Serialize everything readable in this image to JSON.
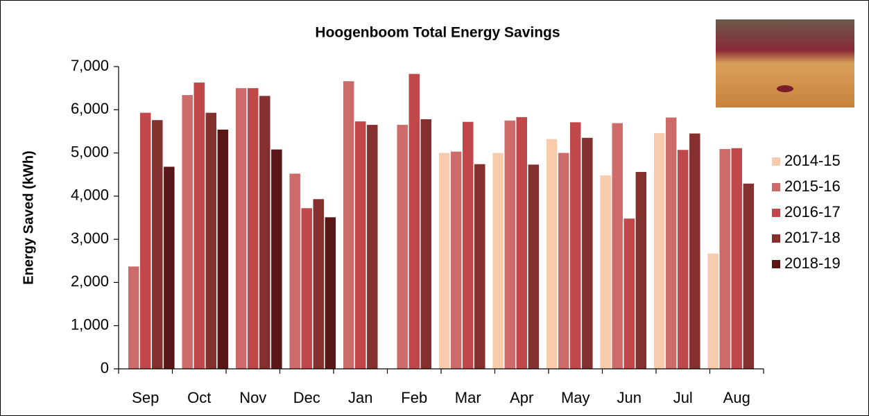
{
  "chart_data": {
    "type": "bar",
    "title": "Hoogenboom Total Energy Savings",
    "y_label": "Energy Saved (kWh)",
    "categories": [
      "Sep",
      "Oct",
      "Nov",
      "Dec",
      "Jan",
      "Feb",
      "Mar",
      "Apr",
      "May",
      "Jun",
      "Jul",
      "Aug"
    ],
    "series": [
      {
        "name": "2014-15",
        "color": "#f8cbad",
        "values": [
          null,
          null,
          null,
          null,
          null,
          null,
          5000,
          5000,
          5320,
          4480,
          5460,
          2670
        ]
      },
      {
        "name": "2015-16",
        "color": "#cd6b6b",
        "values": [
          2370,
          6340,
          6500,
          4520,
          6660,
          5650,
          5030,
          5750,
          5000,
          5690,
          5820,
          5090
        ]
      },
      {
        "name": "2016-17",
        "color": "#c0484a",
        "values": [
          5930,
          6630,
          6500,
          3720,
          5730,
          6830,
          5720,
          5830,
          5710,
          3480,
          5070,
          5110
        ]
      },
      {
        "name": "2017-18",
        "color": "#84302f",
        "values": [
          5760,
          5930,
          6320,
          3930,
          5650,
          5780,
          4740,
          4730,
          5350,
          4560,
          5450,
          4290
        ]
      },
      {
        "name": "2018-19",
        "color": "#5a1616",
        "values": [
          4680,
          5540,
          5080,
          3510,
          null,
          null,
          null,
          null,
          null,
          null,
          null,
          null
        ]
      }
    ],
    "ylim": [
      0,
      7000
    ],
    "yticks": [
      0,
      {
        "value": 1000,
        "label": "1,000"
      },
      {
        "value": 2000,
        "label": "2,000"
      },
      {
        "value": 3000,
        "label": "3,000"
      },
      {
        "value": 4000,
        "label": "4,000"
      },
      {
        "value": 5000,
        "label": "5,000"
      },
      {
        "value": 6000,
        "label": "6,000"
      },
      {
        "value": 7000,
        "label": "7,000"
      }
    ],
    "legend": "right"
  }
}
